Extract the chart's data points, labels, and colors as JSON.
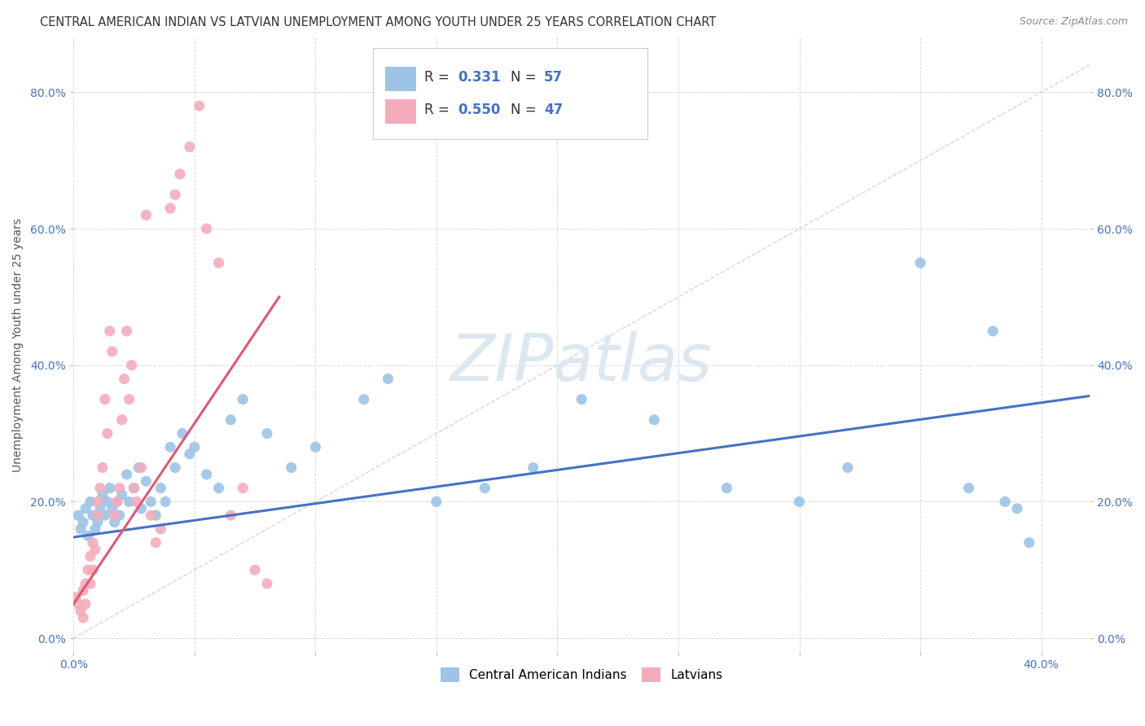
{
  "title": "CENTRAL AMERICAN INDIAN VS LATVIAN UNEMPLOYMENT AMONG YOUTH UNDER 25 YEARS CORRELATION CHART",
  "source": "Source: ZipAtlas.com",
  "ylabel": "Unemployment Among Youth under 25 years",
  "xlim": [
    0.0,
    0.42
  ],
  "ylim": [
    -0.02,
    0.88
  ],
  "xtick_vals": [
    0.0,
    0.05,
    0.1,
    0.15,
    0.2,
    0.25,
    0.3,
    0.35,
    0.4
  ],
  "xtick_labels": [
    "0.0%",
    "",
    "",
    "",
    "",
    "",
    "",
    "",
    "40.0%"
  ],
  "ytick_vals": [
    0.0,
    0.2,
    0.4,
    0.6,
    0.8
  ],
  "ytick_labels": [
    "0.0%",
    "20.0%",
    "40.0%",
    "60.0%",
    "80.0%"
  ],
  "blue_color": "#4472c4",
  "pink_color": "#e05870",
  "blue_scatter_color": "#9dc3e6",
  "pink_scatter_color": "#f4acbb",
  "diag_color": "#cccccc",
  "background_color": "#ffffff",
  "grid_color": "#d9d9d9",
  "blue_R": "0.331",
  "blue_N": "57",
  "pink_R": "0.550",
  "pink_N": "47",
  "blue_scatter_x": [
    0.002,
    0.003,
    0.004,
    0.005,
    0.006,
    0.007,
    0.008,
    0.009,
    0.01,
    0.011,
    0.012,
    0.013,
    0.014,
    0.015,
    0.016,
    0.017,
    0.018,
    0.019,
    0.02,
    0.022,
    0.023,
    0.025,
    0.027,
    0.028,
    0.03,
    0.032,
    0.034,
    0.036,
    0.038,
    0.04,
    0.042,
    0.045,
    0.048,
    0.05,
    0.055,
    0.06,
    0.065,
    0.07,
    0.08,
    0.09,
    0.1,
    0.12,
    0.13,
    0.15,
    0.17,
    0.19,
    0.21,
    0.24,
    0.27,
    0.3,
    0.32,
    0.35,
    0.37,
    0.38,
    0.385,
    0.39,
    0.395
  ],
  "blue_scatter_y": [
    0.18,
    0.16,
    0.17,
    0.19,
    0.15,
    0.2,
    0.18,
    0.16,
    0.17,
    0.19,
    0.21,
    0.18,
    0.2,
    0.22,
    0.19,
    0.17,
    0.2,
    0.18,
    0.21,
    0.24,
    0.2,
    0.22,
    0.25,
    0.19,
    0.23,
    0.2,
    0.18,
    0.22,
    0.2,
    0.28,
    0.25,
    0.3,
    0.27,
    0.28,
    0.24,
    0.22,
    0.32,
    0.35,
    0.3,
    0.25,
    0.28,
    0.35,
    0.38,
    0.2,
    0.22,
    0.25,
    0.35,
    0.32,
    0.22,
    0.2,
    0.25,
    0.55,
    0.22,
    0.45,
    0.2,
    0.19,
    0.14
  ],
  "pink_scatter_x": [
    0.001,
    0.002,
    0.003,
    0.004,
    0.004,
    0.005,
    0.005,
    0.006,
    0.007,
    0.007,
    0.008,
    0.008,
    0.009,
    0.01,
    0.01,
    0.011,
    0.012,
    0.013,
    0.014,
    0.015,
    0.016,
    0.017,
    0.018,
    0.019,
    0.02,
    0.021,
    0.022,
    0.023,
    0.024,
    0.025,
    0.026,
    0.028,
    0.03,
    0.032,
    0.034,
    0.036,
    0.04,
    0.042,
    0.044,
    0.048,
    0.052,
    0.055,
    0.06,
    0.065,
    0.07,
    0.075,
    0.08
  ],
  "pink_scatter_y": [
    0.06,
    0.05,
    0.04,
    0.07,
    0.03,
    0.08,
    0.05,
    0.1,
    0.12,
    0.08,
    0.14,
    0.1,
    0.13,
    0.2,
    0.18,
    0.22,
    0.25,
    0.35,
    0.3,
    0.45,
    0.42,
    0.18,
    0.2,
    0.22,
    0.32,
    0.38,
    0.45,
    0.35,
    0.4,
    0.22,
    0.2,
    0.25,
    0.62,
    0.18,
    0.14,
    0.16,
    0.63,
    0.65,
    0.68,
    0.72,
    0.78,
    0.6,
    0.55,
    0.18,
    0.22,
    0.1,
    0.08
  ],
  "blue_line_x": [
    0.0,
    0.42
  ],
  "blue_line_y": [
    0.148,
    0.355
  ],
  "pink_line_x": [
    0.0,
    0.085
  ],
  "pink_line_y": [
    0.05,
    0.5
  ],
  "diag_line_x": [
    0.0,
    0.42
  ],
  "diag_line_y": [
    0.0,
    0.84
  ],
  "title_fontsize": 10.5,
  "source_fontsize": 9,
  "label_fontsize": 10,
  "tick_fontsize": 10,
  "watermark_color": "#dce8f0",
  "tick_color": "#4472c4"
}
